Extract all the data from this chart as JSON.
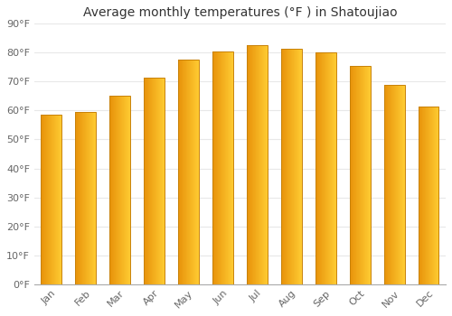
{
  "title": "Average monthly temperatures (°F ) in Shatoujiao",
  "months": [
    "Jan",
    "Feb",
    "Mar",
    "Apr",
    "May",
    "Jun",
    "Jul",
    "Aug",
    "Sep",
    "Oct",
    "Nov",
    "Dec"
  ],
  "values": [
    58.5,
    59.5,
    65.0,
    71.5,
    77.5,
    80.5,
    82.5,
    81.5,
    80.0,
    75.5,
    69.0,
    61.5
  ],
  "bar_color_left": "#E8930A",
  "bar_color_right": "#FFCC33",
  "bar_edge_color": "#C8820A",
  "background_color": "#FFFFFF",
  "grid_color": "#E8E8E8",
  "ylim": [
    0,
    90
  ],
  "yticks": [
    0,
    10,
    20,
    30,
    40,
    50,
    60,
    70,
    80,
    90
  ],
  "ytick_labels": [
    "0°F",
    "10°F",
    "20°F",
    "30°F",
    "40°F",
    "50°F",
    "60°F",
    "70°F",
    "80°F",
    "90°F"
  ],
  "title_fontsize": 10,
  "tick_fontsize": 8,
  "bar_width": 0.6
}
